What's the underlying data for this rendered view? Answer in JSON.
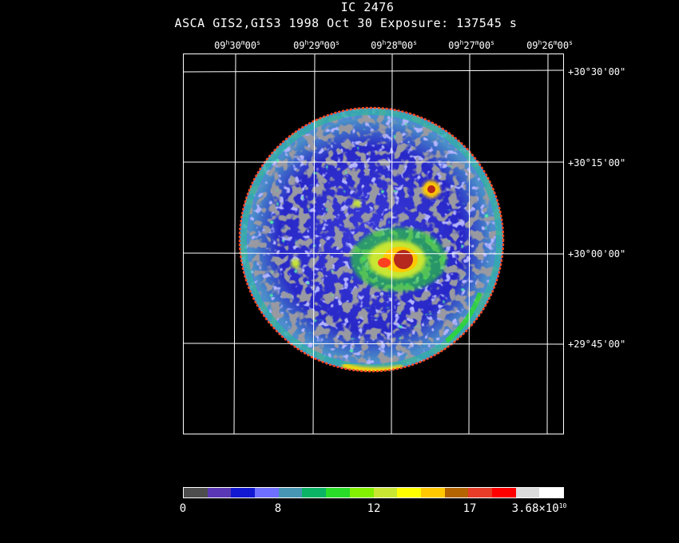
{
  "header": {
    "object": "IC 2476",
    "line2": "ASCA GIS2,GIS3   1998 Oct 30    Exposure: 137545 s"
  },
  "ra_labels": [
    {
      "h": "09",
      "m": "30",
      "s": "00"
    },
    {
      "h": "09",
      "m": "29",
      "s": "00"
    },
    {
      "h": "09",
      "m": "28",
      "s": "00"
    },
    {
      "h": "09",
      "m": "27",
      "s": "00"
    },
    {
      "h": "09",
      "m": "26",
      "s": "00"
    }
  ],
  "dec_labels": [
    "+30°30'00\"",
    "+30°15'00\"",
    "+30°00'00\"",
    "+29°45'00\""
  ],
  "colorbar": {
    "colors": [
      "#4d4d4d",
      "#5a37b4",
      "#1218d2",
      "#6e6eff",
      "#4696b4",
      "#0ab464",
      "#28dc28",
      "#82f000",
      "#c8e632",
      "#ffff00",
      "#ffc800",
      "#b46400",
      "#e63c28",
      "#ff0000",
      "#dcdcdc",
      "#ffffff"
    ],
    "ticks": [
      "0",
      "8",
      "12",
      "17"
    ],
    "max_label_base": "3.68×10",
    "max_label_exp": "10"
  }
}
